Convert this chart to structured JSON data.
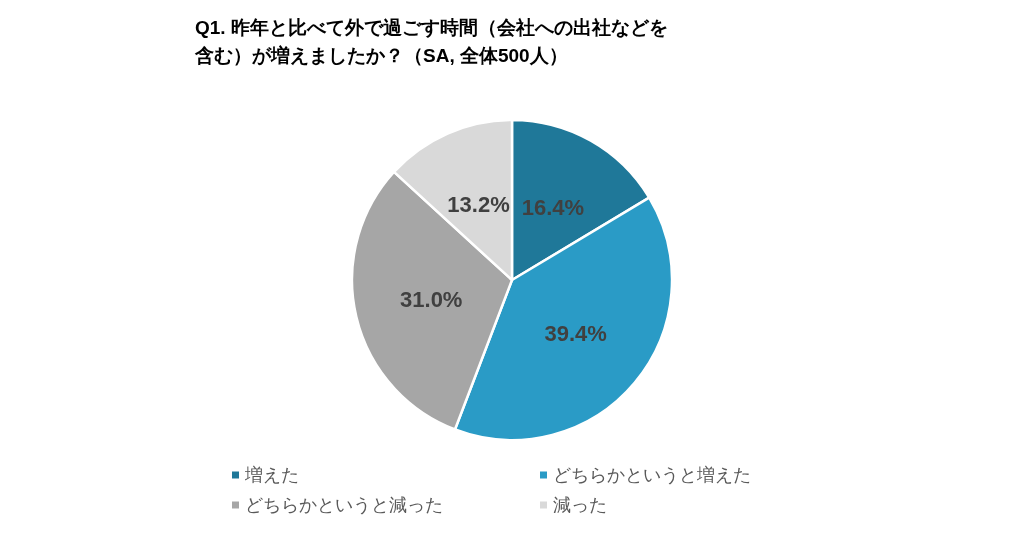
{
  "chart_data": {
    "type": "pie",
    "title": "Q1. 昨年と比べて外で過ごす時間（会社への出社などを含む）が増えましたか？（SA, 全体500人）",
    "categories": [
      "増えた",
      "どちらかというと増えた",
      "どちらかというと減った",
      "減った"
    ],
    "values": [
      16.4,
      39.4,
      31.0,
      13.2
    ],
    "value_labels": [
      "16.4%",
      "39.4%",
      "31.0%",
      "13.2%"
    ],
    "colors": [
      "#1f7899",
      "#2a9bc6",
      "#a6a6a6",
      "#d9d9d9"
    ],
    "legend": "bottom"
  }
}
